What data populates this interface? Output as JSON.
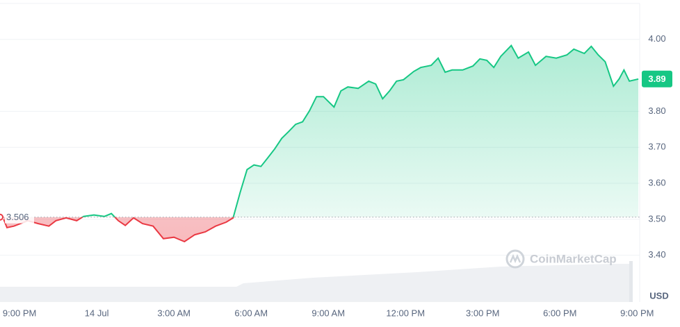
{
  "chart_data": {
    "type": "line",
    "x": [
      -0.62,
      -0.49,
      -0.22,
      0.32,
      0.73,
      1.14,
      1.41,
      1.81,
      2.22,
      2.49,
      2.89,
      3.3,
      3.57,
      3.84,
      4.11,
      4.43,
      4.78,
      5.19,
      5.59,
      6.0,
      6.41,
      6.81,
      7.22,
      7.62,
      8.03,
      8.3,
      8.57,
      8.84,
      9.11,
      9.38,
      9.65,
      9.92,
      10.19,
      10.46,
      10.73,
      11.0,
      11.27,
      11.54,
      11.81,
      12.22,
      12.49,
      12.76,
      13.16,
      13.57,
      13.84,
      14.11,
      14.38,
      14.65,
      14.92,
      15.32,
      15.59,
      16.0,
      16.27,
      16.54,
      16.81,
      17.22,
      17.62,
      17.89,
      18.16,
      18.43,
      18.7,
      19.11,
      19.38,
      19.78,
      20.05,
      20.46,
      20.86,
      21.27,
      21.54,
      21.95,
      22.22,
      22.49,
      22.76,
      23.08,
      23.3,
      23.49,
      23.7,
      24.05
    ],
    "values": [
      3.5,
      3.477,
      3.481,
      3.496,
      3.488,
      3.481,
      3.496,
      3.504,
      3.496,
      3.508,
      3.512,
      3.508,
      3.516,
      3.496,
      3.483,
      3.504,
      3.488,
      3.481,
      3.446,
      3.45,
      3.438,
      3.457,
      3.465,
      3.481,
      3.492,
      3.504,
      3.574,
      3.638,
      3.651,
      3.647,
      3.671,
      3.696,
      3.725,
      3.744,
      3.764,
      3.771,
      3.802,
      3.841,
      3.841,
      3.812,
      3.857,
      3.868,
      3.864,
      3.884,
      3.876,
      3.835,
      3.857,
      3.884,
      3.888,
      3.911,
      3.922,
      3.928,
      3.948,
      3.909,
      3.915,
      3.915,
      3.926,
      3.946,
      3.942,
      3.922,
      3.953,
      3.983,
      3.948,
      3.965,
      3.928,
      3.953,
      3.948,
      3.957,
      3.973,
      3.961,
      3.981,
      3.957,
      3.938,
      3.87,
      3.89,
      3.915,
      3.884,
      3.89
    ],
    "baseline": 3.506,
    "current_price": 3.89,
    "up_color": "#16c784",
    "down_color": "#ea3943",
    "currency": "USD",
    "watermark": "CoinMarketCap",
    "xlim": [
      -0.76,
      24.1
    ],
    "xticks": [
      {
        "value": 0,
        "label": "9:00 PM"
      },
      {
        "value": 3,
        "label": "14 Jul"
      },
      {
        "value": 6,
        "label": "3:00 AM"
      },
      {
        "value": 9,
        "label": "6:00 AM"
      },
      {
        "value": 12,
        "label": "9:00 AM"
      },
      {
        "value": 15,
        "label": "12:00 PM"
      },
      {
        "value": 18,
        "label": "3:00 PM"
      },
      {
        "value": 21,
        "label": "6:00 PM"
      },
      {
        "value": 24,
        "label": "9:00 PM"
      }
    ],
    "ylim": [
      3.27,
      4.1
    ],
    "yticks": [
      {
        "value": 3.4,
        "label": "3.40"
      },
      {
        "value": 3.5,
        "label": "3.50"
      },
      {
        "value": 3.6,
        "label": "3.60"
      },
      {
        "value": 3.7,
        "label": "3.70"
      },
      {
        "value": 3.8,
        "label": "3.80"
      },
      {
        "value": 4.0,
        "label": "4.00"
      }
    ],
    "grid": true
  }
}
